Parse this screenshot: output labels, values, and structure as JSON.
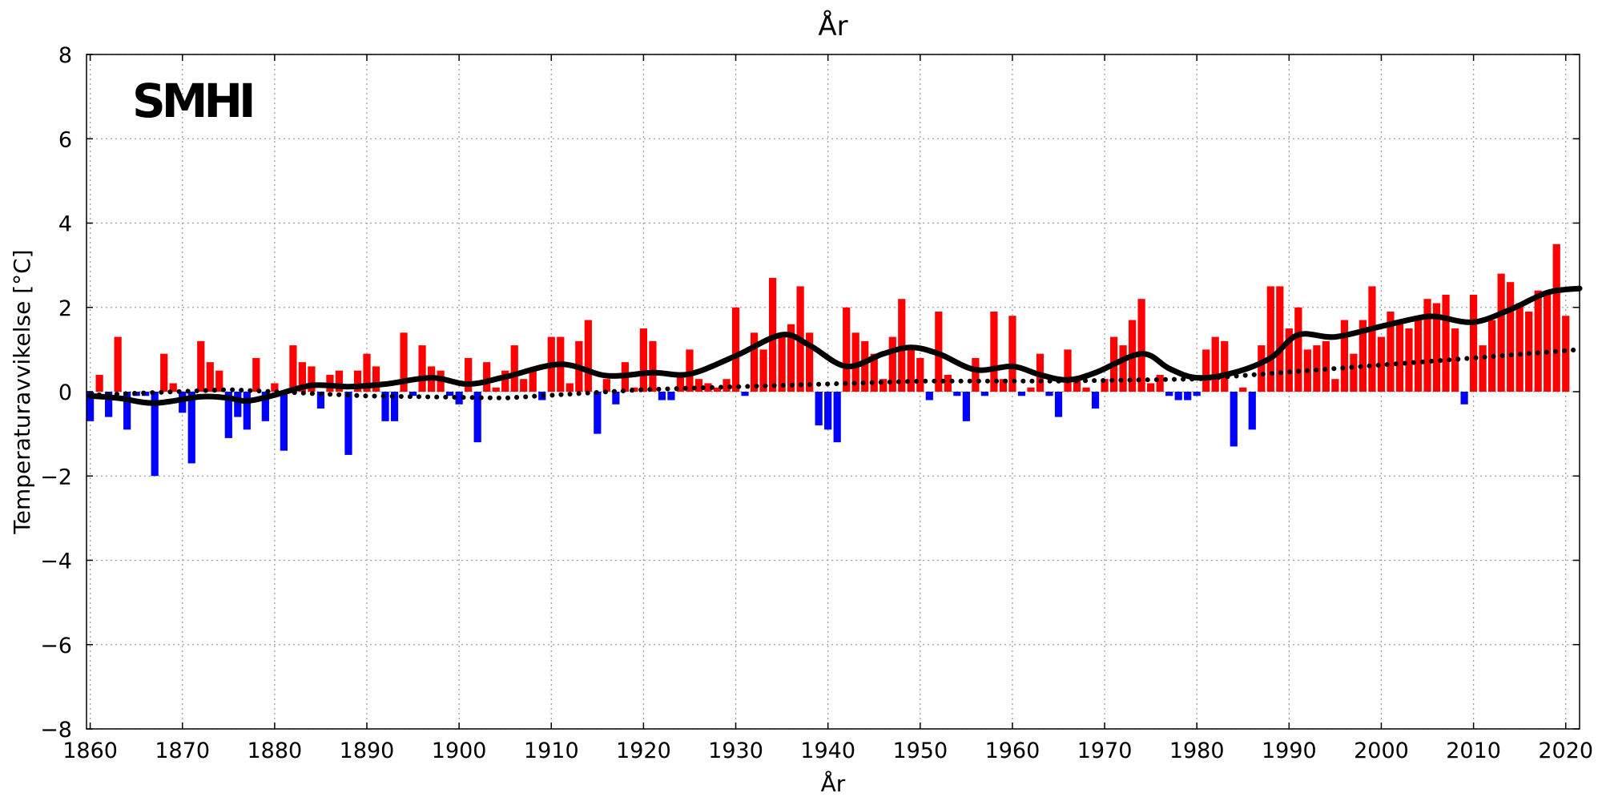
{
  "chart_data": {
    "type": "bar",
    "title": "År",
    "xlabel": "År",
    "ylabel": "Temperaturavvikelse [°C]",
    "logo_text": "SMHI",
    "xlim": [
      1859.6,
      2021.5
    ],
    "ylim": [
      -8,
      8
    ],
    "xticks": [
      1860,
      1870,
      1880,
      1890,
      1900,
      1910,
      1920,
      1930,
      1940,
      1950,
      1960,
      1970,
      1980,
      1990,
      2000,
      2010,
      2020
    ],
    "yticks": [
      -8,
      -6,
      -4,
      -2,
      0,
      2,
      4,
      6,
      8
    ],
    "grid": true,
    "colors": {
      "positive": "#ff0000",
      "negative": "#0000ff",
      "smooth_line": "#000000",
      "trend_line": "#000000"
    },
    "x_start": 1860,
    "anomalies": [
      -0.7,
      0.4,
      -0.6,
      1.3,
      -0.9,
      -0.1,
      -0.1,
      -2.0,
      0.9,
      0.2,
      -0.5,
      -1.7,
      1.2,
      0.7,
      0.5,
      -1.1,
      -0.6,
      -0.9,
      0.8,
      -0.7,
      0.2,
      -1.4,
      1.1,
      0.7,
      0.6,
      -0.4,
      0.4,
      0.5,
      -1.5,
      0.5,
      0.9,
      0.6,
      -0.7,
      -0.7,
      1.4,
      -0.1,
      1.1,
      0.6,
      0.5,
      -0.1,
      -0.3,
      0.8,
      -1.2,
      0.7,
      0.1,
      0.5,
      1.1,
      0.3,
      0.5,
      -0.2,
      1.3,
      1.3,
      0.2,
      1.2,
      1.7,
      -1.0,
      0.3,
      -0.3,
      0.7,
      0.1,
      1.5,
      1.2,
      -0.2,
      -0.2,
      0.4,
      1.0,
      0.3,
      0.2,
      0.1,
      0.3,
      2.0,
      -0.1,
      1.4,
      1.0,
      2.7,
      1.3,
      1.6,
      2.5,
      1.4,
      -0.8,
      -0.9,
      -1.2,
      2.0,
      1.4,
      1.2,
      0.9,
      0.3,
      1.3,
      2.2,
      1.0,
      0.8,
      -0.2,
      1.9,
      0.4,
      -0.1,
      -0.7,
      0.8,
      -0.1,
      1.9,
      0.3,
      1.8,
      -0.1,
      0.1,
      0.9,
      -0.1,
      -0.6,
      1.0,
      0.3,
      0.1,
      -0.4,
      0.3,
      1.3,
      1.1,
      1.7,
      2.2,
      0.2,
      0.4,
      -0.1,
      -0.2,
      -0.2,
      -0.1,
      1.0,
      1.3,
      1.2,
      -1.3,
      0.1,
      -0.9,
      1.1,
      2.5,
      2.5,
      1.5,
      2.0,
      1.0,
      1.1,
      1.2,
      0.3,
      1.7,
      0.9,
      1.7,
      2.5,
      1.3,
      1.9,
      1.6,
      1.5,
      1.8,
      2.2,
      2.1,
      2.3,
      1.5,
      -0.3,
      2.3,
      1.1,
      1.7,
      2.8,
      2.6,
      2.1,
      1.9,
      2.4,
      2.3,
      3.5,
      1.8
    ],
    "smoothed": {
      "x": [
        1860,
        1863,
        1867,
        1872,
        1875,
        1877,
        1880,
        1884,
        1888,
        1892,
        1897,
        1901,
        1905,
        1911,
        1916,
        1921,
        1925,
        1930,
        1935,
        1938,
        1942,
        1946,
        1949,
        1952,
        1956,
        1960,
        1963,
        1966,
        1969,
        1974,
        1977,
        1980,
        1984,
        1988,
        1991,
        1995,
        2000,
        2004,
        2006,
        2010,
        2014,
        2018,
        2021.5
      ],
      "y": [
        -0.1,
        -0.15,
        -0.27,
        -0.12,
        -0.15,
        -0.22,
        -0.08,
        0.15,
        0.12,
        0.18,
        0.33,
        0.18,
        0.35,
        0.65,
        0.38,
        0.45,
        0.42,
        0.85,
        1.35,
        1.1,
        0.6,
        0.9,
        1.05,
        0.9,
        0.52,
        0.6,
        0.4,
        0.28,
        0.45,
        0.9,
        0.55,
        0.33,
        0.45,
        0.8,
        1.35,
        1.3,
        1.55,
        1.75,
        1.78,
        1.65,
        1.95,
        2.35,
        2.45
      ]
    },
    "linear_trend": {
      "x": [
        1860,
        1875,
        1890,
        1905,
        1920,
        1935,
        1950,
        1965,
        1980,
        1995,
        2010,
        2021.5
      ],
      "y": [
        -0.08,
        0.05,
        -0.1,
        -0.15,
        0.05,
        0.15,
        0.25,
        0.25,
        0.3,
        0.55,
        0.8,
        1.0
      ]
    }
  }
}
